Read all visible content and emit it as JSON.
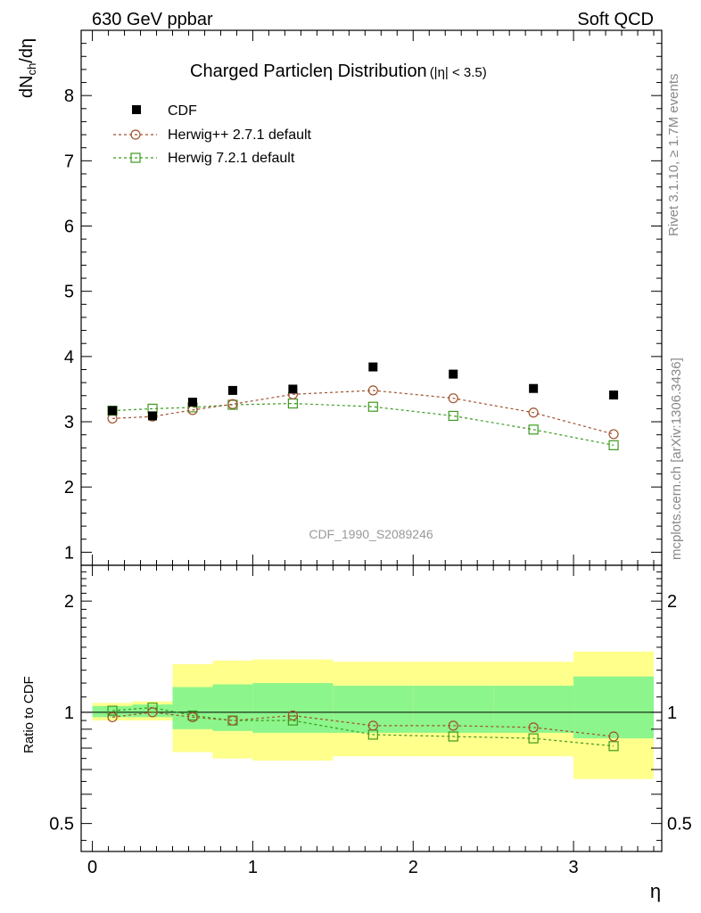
{
  "header": {
    "left": "630 GeV ppbar",
    "right": "Soft QCD"
  },
  "side_text": {
    "rivet": "Rivet 3.1.10, ≥ 1.7M events",
    "mcplots": "mcplots.cern.ch [arXiv:1306.3436]"
  },
  "chart_data": [
    {
      "type": "scatter",
      "title": "Charged Particleη Distribution",
      "title_suffix": "(|η| < 3.5)",
      "ylabel_main": "dN",
      "ylabel_sub": "ch",
      "ylabel_tail": "/dη",
      "watermark": "CDF_1990_S2089246",
      "xlim": [
        -0.07,
        3.55
      ],
      "ylim": [
        0.8,
        9.0
      ],
      "yticks": [
        "1",
        "2",
        "3",
        "4",
        "5",
        "6",
        "7",
        "8"
      ],
      "x": [
        0.125,
        0.375,
        0.625,
        0.875,
        1.25,
        1.75,
        2.25,
        2.75,
        3.25
      ],
      "series": [
        {
          "name": "CDF",
          "color": "#000000",
          "marker": "filled-square",
          "values": [
            3.17,
            3.09,
            3.3,
            3.48,
            3.5,
            3.84,
            3.73,
            3.51,
            3.41
          ]
        },
        {
          "name": "Herwig++ 2.7.1 default",
          "color": "#a0522d",
          "marker": "open-circle",
          "values": [
            3.05,
            3.08,
            3.18,
            3.27,
            3.42,
            3.48,
            3.36,
            3.14,
            2.81
          ]
        },
        {
          "name": "Herwig 7.2.1 default",
          "color": "#3c9a1e",
          "marker": "open-square",
          "values": [
            3.17,
            3.2,
            3.22,
            3.26,
            3.28,
            3.23,
            3.09,
            2.88,
            2.64
          ]
        }
      ]
    },
    {
      "type": "line",
      "ylabel": "Ratio to CDF",
      "xlabel": "η",
      "log_y": true,
      "xlim": [
        -0.07,
        3.55
      ],
      "ylim": [
        0.42,
        2.5
      ],
      "yticks": [
        "0.5",
        "1",
        "2"
      ],
      "xticks": [
        "0",
        "1",
        "2",
        "3"
      ],
      "bins": [
        [
          0.0,
          0.25
        ],
        [
          0.25,
          0.5
        ],
        [
          0.5,
          0.75
        ],
        [
          0.75,
          1.0
        ],
        [
          1.0,
          1.5
        ],
        [
          1.5,
          2.0
        ],
        [
          2.0,
          2.5
        ],
        [
          2.5,
          3.0
        ],
        [
          3.0,
          3.5
        ]
      ],
      "band_yellow": [
        [
          0.95,
          1.06
        ],
        [
          0.95,
          1.07
        ],
        [
          0.78,
          1.35
        ],
        [
          0.75,
          1.38
        ],
        [
          0.74,
          1.39
        ],
        [
          0.76,
          1.37
        ],
        [
          0.76,
          1.37
        ],
        [
          0.76,
          1.37
        ],
        [
          0.66,
          1.46
        ]
      ],
      "band_green": [
        [
          0.97,
          1.04
        ],
        [
          0.97,
          1.05
        ],
        [
          0.9,
          1.17
        ],
        [
          0.89,
          1.19
        ],
        [
          0.88,
          1.2
        ],
        [
          0.88,
          1.18
        ],
        [
          0.88,
          1.18
        ],
        [
          0.88,
          1.18
        ],
        [
          0.85,
          1.25
        ]
      ],
      "x": [
        0.125,
        0.375,
        0.625,
        0.875,
        1.25,
        1.75,
        2.25,
        2.75,
        3.25
      ],
      "series": [
        {
          "name": "Herwig++ 2.7.1 default",
          "color": "#a0522d",
          "marker": "open-circle",
          "values": [
            0.97,
            1.0,
            0.97,
            0.95,
            0.98,
            0.92,
            0.92,
            0.91,
            0.86
          ]
        },
        {
          "name": "Herwig 7.2.1 default",
          "color": "#3c9a1e",
          "marker": "open-square",
          "values": [
            1.01,
            1.03,
            0.98,
            0.95,
            0.95,
            0.87,
            0.86,
            0.85,
            0.81
          ]
        }
      ]
    }
  ]
}
